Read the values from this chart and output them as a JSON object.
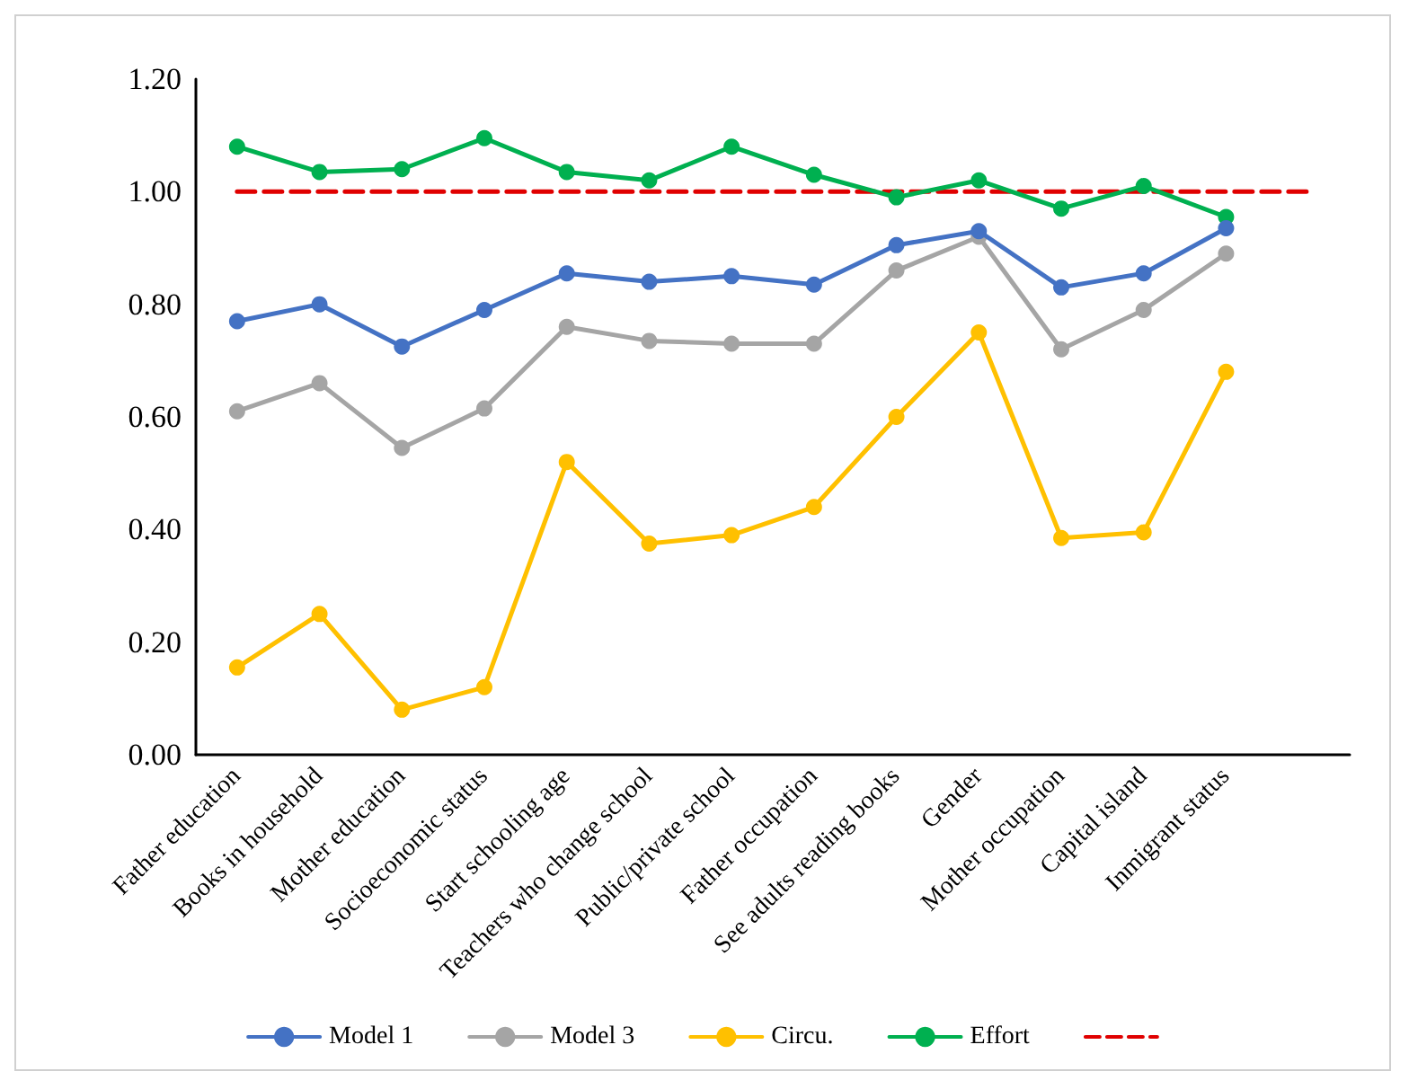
{
  "chart_data": {
    "type": "line",
    "categories": [
      "Father education",
      "Books in household",
      "Mother education",
      "Socioeconomic status",
      "Start schooling age",
      "Teachers who change school",
      "Public/private school",
      "Father occupation",
      "See adults reading books",
      "Gender",
      "Mother occupation",
      "Capital island",
      "Inmigrant status",
      null
    ],
    "series": [
      {
        "name": "Model 1",
        "color": "#4472c4",
        "values": [
          0.77,
          0.8,
          0.725,
          0.79,
          0.855,
          0.84,
          0.85,
          0.835,
          0.905,
          0.93,
          0.83,
          0.855,
          0.935,
          null
        ]
      },
      {
        "name": "Model 3",
        "color": "#a5a5a5",
        "values": [
          0.61,
          0.66,
          0.545,
          0.615,
          0.76,
          0.735,
          0.73,
          0.73,
          0.86,
          0.92,
          0.72,
          0.79,
          0.89,
          null
        ]
      },
      {
        "name": "Circu.",
        "color": "#ffc000",
        "values": [
          0.155,
          0.25,
          0.08,
          0.12,
          0.52,
          0.375,
          0.39,
          0.44,
          0.6,
          0.75,
          0.385,
          0.395,
          0.68,
          null
        ]
      },
      {
        "name": "Effort",
        "color": "#00b050",
        "values": [
          1.08,
          1.035,
          1.04,
          1.095,
          1.035,
          1.02,
          1.08,
          1.03,
          0.99,
          1.02,
          0.97,
          1.01,
          0.955,
          null
        ]
      },
      {
        "color": "#e00000",
        "values": [
          1,
          1,
          1,
          1,
          1,
          1,
          1,
          1,
          1,
          1,
          1,
          1,
          1,
          1
        ],
        "line_style": "dashed",
        "marker": "none"
      }
    ],
    "ylim": [
      0,
      1.2
    ],
    "yticks": [
      {
        "value": 0,
        "label": "0.00"
      },
      {
        "value": 0.2,
        "label": "0.20"
      },
      {
        "value": 0.4,
        "label": "0.40"
      },
      {
        "value": 0.6,
        "label": "0.60"
      },
      {
        "value": 0.8,
        "label": "0.80"
      },
      {
        "value": 1,
        "label": "1.00"
      },
      {
        "value": 1.2,
        "label": "1.20"
      }
    ],
    "grid": false,
    "legend": "bottom",
    "marker": "circle",
    "line_style": "solid"
  }
}
